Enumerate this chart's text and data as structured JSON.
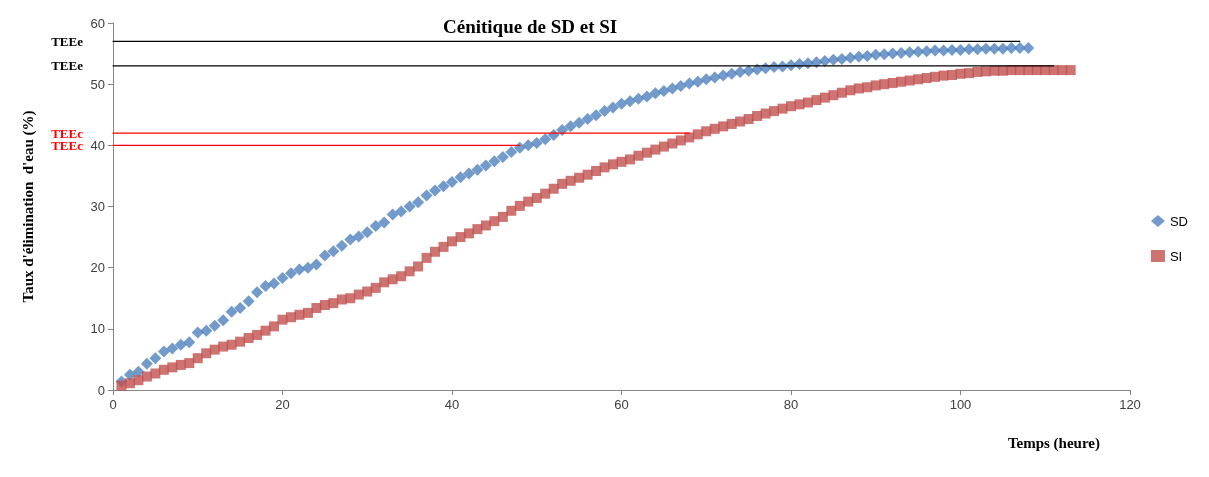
{
  "chart_data": {
    "type": "scatter",
    "title": "Cénitique de SD et SI",
    "xlabel": "Temps (heure)",
    "ylabel": "Taux d'élimination  d'eau (%)",
    "xlim": [
      0,
      120
    ],
    "xticks": [
      0,
      20,
      40,
      60,
      80,
      100,
      120
    ],
    "ylim": [
      0,
      60
    ],
    "yticks": [
      0,
      10,
      20,
      30,
      40,
      50,
      60
    ],
    "grid": false,
    "legend": "right",
    "series": [
      {
        "name": "SD",
        "color": "#4f81bd",
        "marker": "diamond",
        "x": [
          1,
          2,
          3,
          4,
          5,
          6,
          7,
          8,
          9,
          10,
          11,
          12,
          13,
          14,
          15,
          16,
          17,
          18,
          19,
          20,
          21,
          22,
          23,
          24,
          25,
          26,
          27,
          28,
          29,
          30,
          31,
          32,
          33,
          34,
          35,
          36,
          37,
          38,
          39,
          40,
          41,
          42,
          43,
          44,
          45,
          46,
          47,
          48,
          49,
          50,
          51,
          52,
          53,
          54,
          55,
          56,
          57,
          58,
          59,
          60,
          61,
          62,
          63,
          64,
          65,
          66,
          67,
          68,
          69,
          70,
          71,
          72,
          73,
          74,
          75,
          76,
          77,
          78,
          79,
          80,
          81,
          82,
          83,
          84,
          85,
          86,
          87,
          88,
          89,
          90,
          91,
          92,
          93,
          94,
          95,
          96,
          97,
          98,
          99,
          100,
          101,
          102,
          103,
          104,
          105,
          106,
          107,
          108
        ],
        "values": [
          1.4,
          2.5,
          3,
          4.3,
          5.2,
          6.3,
          6.8,
          7.4,
          7.8,
          9.4,
          9.7,
          10.5,
          11.4,
          12.8,
          13.4,
          14.5,
          16,
          17,
          17.4,
          18.3,
          19.1,
          19.7,
          20,
          20.5,
          22,
          22.7,
          23.6,
          24.6,
          25.1,
          25.8,
          26.8,
          27.4,
          28.7,
          29.2,
          30,
          30.7,
          31.8,
          32.6,
          33.3,
          34,
          34.8,
          35.4,
          36,
          36.7,
          37.4,
          38.1,
          38.9,
          39.6,
          40,
          40.4,
          41,
          41.7,
          42.5,
          43.1,
          43.7,
          44.3,
          44.9,
          45.6,
          46.2,
          46.8,
          47.2,
          47.6,
          48,
          48.5,
          48.9,
          49.3,
          49.7,
          50.1,
          50.4,
          50.8,
          51.1,
          51.4,
          51.7,
          52,
          52.2,
          52.4,
          52.6,
          52.8,
          52.9,
          53.1,
          53.3,
          53.4,
          53.6,
          53.8,
          54,
          54.1,
          54.3,
          54.5,
          54.6,
          54.8,
          54.9,
          55,
          55.1,
          55.2,
          55.3,
          55.4,
          55.5,
          55.5,
          55.6,
          55.6,
          55.7,
          55.7,
          55.8,
          55.8,
          55.8,
          55.9,
          55.9,
          55.9
        ]
      },
      {
        "name": "SI",
        "color": "#c0504d",
        "marker": "square",
        "x": [
          1,
          2,
          3,
          4,
          5,
          6,
          7,
          8,
          9,
          10,
          11,
          12,
          13,
          14,
          15,
          16,
          17,
          18,
          19,
          20,
          21,
          22,
          23,
          24,
          25,
          26,
          27,
          28,
          29,
          30,
          31,
          32,
          33,
          34,
          35,
          36,
          37,
          38,
          39,
          40,
          41,
          42,
          43,
          44,
          45,
          46,
          47,
          48,
          49,
          50,
          51,
          52,
          53,
          54,
          55,
          56,
          57,
          58,
          59,
          60,
          61,
          62,
          63,
          64,
          65,
          66,
          67,
          68,
          69,
          70,
          71,
          72,
          73,
          74,
          75,
          76,
          77,
          78,
          79,
          80,
          81,
          82,
          83,
          84,
          85,
          86,
          87,
          88,
          89,
          90,
          91,
          92,
          93,
          94,
          95,
          96,
          97,
          98,
          99,
          100,
          101,
          102,
          103,
          104,
          105,
          106,
          107,
          108,
          109,
          110,
          111,
          112,
          113
        ],
        "values": [
          0.7,
          1.1,
          1.6,
          2.2,
          2.7,
          3.3,
          3.7,
          4.1,
          4.4,
          5.2,
          6,
          6.6,
          7.1,
          7.4,
          7.9,
          8.5,
          9,
          9.7,
          10.4,
          11.5,
          11.9,
          12.3,
          12.6,
          13.4,
          13.9,
          14.2,
          14.8,
          15,
          15.6,
          16.1,
          16.7,
          17.6,
          18.1,
          18.6,
          19.4,
          20.2,
          21.6,
          22.6,
          23.4,
          24.3,
          25,
          25.6,
          26.3,
          26.9,
          27.6,
          28.3,
          29.3,
          30.1,
          30.8,
          31.4,
          32.1,
          32.9,
          33.7,
          34.2,
          34.7,
          35.2,
          35.8,
          36.4,
          36.9,
          37.3,
          37.7,
          38.3,
          38.8,
          39.3,
          39.8,
          40.3,
          40.8,
          41.3,
          41.8,
          42.3,
          42.7,
          43.1,
          43.5,
          43.9,
          44.3,
          44.8,
          45.2,
          45.6,
          46,
          46.4,
          46.7,
          47,
          47.4,
          47.8,
          48.2,
          48.6,
          49,
          49.3,
          49.5,
          49.8,
          50,
          50.2,
          50.4,
          50.6,
          50.8,
          51,
          51.2,
          51.4,
          51.5,
          51.7,
          51.8,
          52,
          52.1,
          52.2,
          52.2,
          52.3,
          52.3,
          52.3,
          52.3,
          52.3,
          52.3,
          52.3,
          52.3
        ]
      },
      {
        "name": "TEEe",
        "type": "line",
        "color": "#000000",
        "marker": "none",
        "line_style": "solid",
        "x": [
          0,
          107
        ],
        "values": [
          57,
          57
        ]
      },
      {
        "name": "TEEe",
        "type": "line",
        "color": "#000000",
        "marker": "none",
        "line_style": "solid",
        "x": [
          0,
          111
        ],
        "values": [
          53,
          53
        ]
      },
      {
        "name": "TEEc",
        "type": "line",
        "color": "#ff0000",
        "marker": "none",
        "line_style": "solid",
        "x": [
          0,
          68
        ],
        "values": [
          42,
          42
        ]
      },
      {
        "name": "TEEc",
        "type": "line",
        "color": "#ff0000",
        "marker": "none",
        "line_style": "solid",
        "x": [
          0,
          48
        ],
        "values": [
          40,
          40
        ]
      }
    ]
  }
}
